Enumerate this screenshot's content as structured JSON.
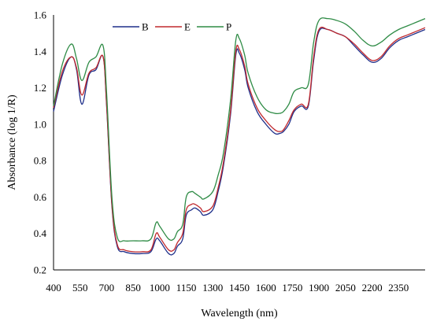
{
  "chart_data": {
    "type": "line",
    "xlabel": "Wavelength (nm)",
    "ylabel": "Absorbance (log 1/R)",
    "xlim": [
      400,
      2500
    ],
    "ylim": [
      0.2,
      1.6
    ],
    "x_ticks": [
      "400",
      "550",
      "700",
      "850",
      "1000",
      "1150",
      "1300",
      "1450",
      "1600",
      "1750",
      "1900",
      "2050",
      "2200",
      "2350"
    ],
    "y_ticks": [
      "0.2",
      "0.4",
      "0.6",
      "0.8",
      "1.0",
      "1.2",
      "1.4",
      "1.6"
    ],
    "grid": false,
    "legend_position": "top-left",
    "x": [
      400,
      450,
      500,
      530,
      560,
      600,
      640,
      680,
      700,
      730,
      760,
      800,
      850,
      900,
      950,
      980,
      1000,
      1050,
      1080,
      1100,
      1130,
      1150,
      1180,
      1200,
      1230,
      1250,
      1300,
      1330,
      1360,
      1400,
      1430,
      1450,
      1480,
      1500,
      1550,
      1600,
      1650,
      1680,
      1700,
      1730,
      1760,
      1800,
      1840,
      1870,
      1900,
      1950,
      2000,
      2050,
      2100,
      2150,
      2200,
      2250,
      2300,
      2350,
      2400,
      2450,
      2500
    ],
    "series": [
      {
        "name": "B",
        "color": "#1f2f8a",
        "values": [
          1.07,
          1.27,
          1.37,
          1.3,
          1.11,
          1.27,
          1.3,
          1.37,
          1.1,
          0.55,
          0.33,
          0.3,
          0.29,
          0.29,
          0.3,
          0.37,
          0.36,
          0.29,
          0.29,
          0.33,
          0.37,
          0.5,
          0.53,
          0.54,
          0.52,
          0.5,
          0.53,
          0.63,
          0.77,
          1.05,
          1.38,
          1.39,
          1.3,
          1.2,
          1.07,
          1.0,
          0.95,
          0.95,
          0.96,
          1.0,
          1.07,
          1.1,
          1.1,
          1.35,
          1.51,
          1.52,
          1.5,
          1.48,
          1.43,
          1.38,
          1.34,
          1.36,
          1.42,
          1.46,
          1.48,
          1.5,
          1.52
        ]
      },
      {
        "name": "E",
        "color": "#c0282d",
        "values": [
          1.09,
          1.29,
          1.37,
          1.31,
          1.16,
          1.28,
          1.31,
          1.37,
          1.11,
          0.56,
          0.34,
          0.31,
          0.3,
          0.3,
          0.31,
          0.4,
          0.38,
          0.31,
          0.31,
          0.35,
          0.4,
          0.53,
          0.56,
          0.56,
          0.54,
          0.52,
          0.55,
          0.65,
          0.79,
          1.07,
          1.4,
          1.41,
          1.32,
          1.22,
          1.09,
          1.02,
          0.97,
          0.96,
          0.97,
          1.02,
          1.08,
          1.11,
          1.11,
          1.37,
          1.52,
          1.52,
          1.5,
          1.48,
          1.44,
          1.39,
          1.35,
          1.37,
          1.43,
          1.47,
          1.49,
          1.51,
          1.53
        ]
      },
      {
        "name": "P",
        "color": "#2e8b45",
        "values": [
          1.1,
          1.33,
          1.44,
          1.36,
          1.24,
          1.34,
          1.37,
          1.43,
          1.17,
          0.6,
          0.38,
          0.36,
          0.36,
          0.36,
          0.37,
          0.46,
          0.44,
          0.37,
          0.37,
          0.41,
          0.45,
          0.6,
          0.63,
          0.62,
          0.6,
          0.59,
          0.63,
          0.72,
          0.84,
          1.13,
          1.46,
          1.47,
          1.38,
          1.28,
          1.15,
          1.08,
          1.06,
          1.06,
          1.07,
          1.11,
          1.18,
          1.2,
          1.22,
          1.45,
          1.57,
          1.58,
          1.57,
          1.55,
          1.51,
          1.46,
          1.43,
          1.45,
          1.49,
          1.52,
          1.54,
          1.56,
          1.58
        ]
      }
    ]
  }
}
